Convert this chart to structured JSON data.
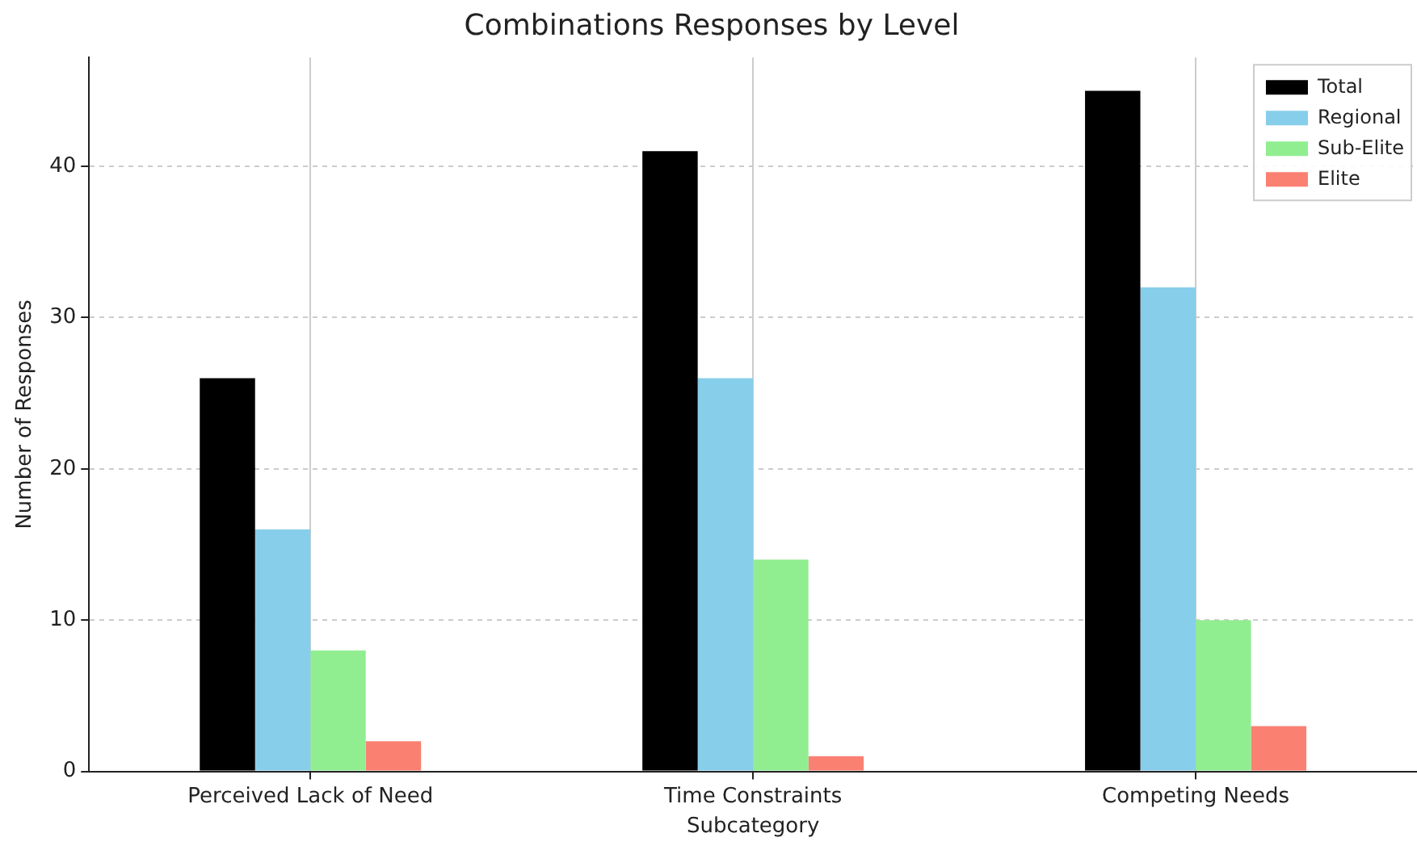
{
  "chart_data": {
    "type": "bar",
    "title": "Combinations Responses by Level",
    "xlabel": "Subcategory",
    "ylabel": "Number of Responses",
    "categories": [
      "Perceived Lack of Need",
      "Time Constraints",
      "Competing Needs"
    ],
    "series": [
      {
        "name": "Total",
        "color": "#000000",
        "values": [
          26,
          41,
          45
        ]
      },
      {
        "name": "Regional",
        "color": "#87ceeb",
        "values": [
          16,
          26,
          32
        ]
      },
      {
        "name": "Sub-Elite",
        "color": "#90ee90",
        "values": [
          8,
          14,
          10
        ]
      },
      {
        "name": "Elite",
        "color": "#fa8072",
        "values": [
          2,
          1,
          3
        ]
      }
    ],
    "ylim": [
      0,
      47.2
    ],
    "yticks": [
      0,
      10,
      20,
      30,
      40
    ],
    "grid": true,
    "legend": "top right"
  }
}
